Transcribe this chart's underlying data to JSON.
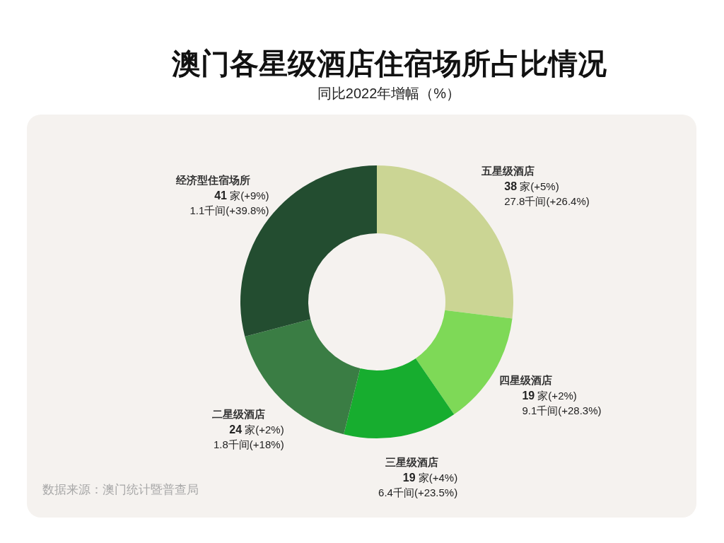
{
  "chart_data": {
    "type": "donut",
    "title": "澳门各星级酒店住宿场所占比情况",
    "subtitle": "同比2022年增幅（%）",
    "categories": [
      "五星级酒店",
      "四星级酒店",
      "三星级酒店",
      "二星级酒店",
      "经济型住宿场所"
    ],
    "values": [
      38,
      19,
      19,
      24,
      41
    ],
    "colors": [
      "#cbd594",
      "#7ed957",
      "#17ad2f",
      "#3a7d44",
      "#234d30"
    ],
    "value_labels": [
      "38 家(+5%)\n27.8千间(+26.4%)",
      "19 家(+2%)\n9.1千间(+28.3%)",
      "19 家(+4%)\n6.4千间(+23.5%)",
      "24 家(+2%)\n1.8千间(+18%)",
      "41 家(+9%)\n1.1千间(+39.8%)"
    ],
    "annotations": [
      "数据来源：澳门统计暨普查局"
    ]
  }
}
